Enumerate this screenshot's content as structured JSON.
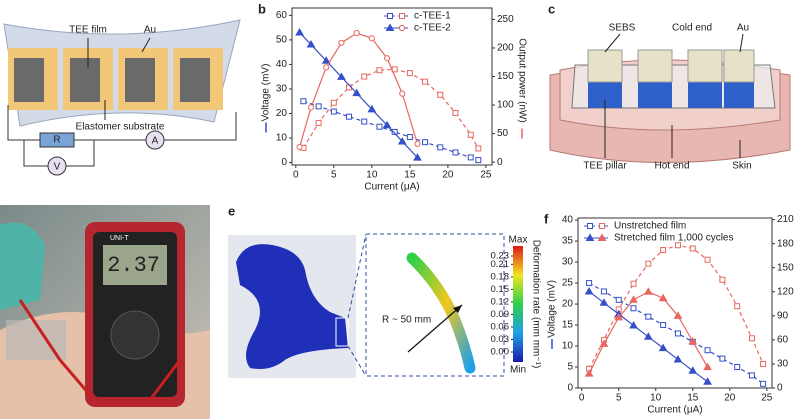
{
  "panel_a": {
    "tee_film": "TEE film",
    "au": "Au",
    "substrate": "Elastomer substrate",
    "resistor": "R",
    "voltmeter": "V",
    "ammeter": "A"
  },
  "panel_c": {
    "letter": "c",
    "sebs": "SEBS",
    "cold_end": "Cold end",
    "au": "Au",
    "tee_pillar": "TEE pillar",
    "hot_end": "Hot end",
    "skin": "Skin"
  },
  "panel_d": {
    "display": "2.37",
    "brand": "UNI-T"
  },
  "panel_e": {
    "letter": "e",
    "max": "Max",
    "min": "Min",
    "colorbar_label": "Deformation rate (mm mm⁻¹)",
    "radius": "R ~ 50 mm",
    "ticks": [
      0.23,
      0.21,
      0.18,
      0.15,
      0.12,
      0.09,
      0.06,
      0.03,
      {
        "value": 0,
        "label": "0.00"
      }
    ]
  },
  "chart_data": [
    {
      "type": "line",
      "panel": "b",
      "x_label": "Current (μA)",
      "y_label": "Voltage (mV)",
      "y2_label": "Output power (nW)",
      "xlim": [
        -0.5,
        25.8
      ],
      "ylim": [
        -1,
        63
      ],
      "y2lim": [
        -5,
        270
      ],
      "xticks": [
        0,
        5,
        10,
        15,
        20,
        25
      ],
      "yticks": [
        0,
        10,
        20,
        30,
        40,
        50,
        60
      ],
      "y2ticks": [
        0,
        50,
        100,
        150,
        200,
        250
      ],
      "legend": "top-right",
      "series": [
        {
          "name": "c-TEE-1",
          "color": "#3550c8",
          "y2_color": "#e8675f",
          "dashed": true,
          "marker": "square",
          "y2_marker": "square",
          "x": [
            1,
            3,
            5,
            7,
            9,
            11,
            13,
            15,
            17,
            19,
            21,
            23,
            24
          ],
          "values": [
            25,
            22.9,
            20.8,
            18.7,
            16.7,
            14.6,
            12.5,
            10.4,
            8.3,
            6.2,
            4.1,
            2.1,
            1
          ],
          "y2_values": [
            25,
            68.7,
            104,
            131,
            150,
            161,
            162.5,
            156,
            141,
            118,
            86,
            48,
            24
          ]
        },
        {
          "name": "c-TEE-2",
          "color": "#3550c8",
          "y2_color": "#e8675f",
          "dashed": false,
          "marker": "triangle",
          "y2_marker": "circle",
          "x": [
            0.5,
            2,
            4,
            6,
            8,
            10,
            12,
            14,
            16
          ],
          "values": [
            53,
            48.1,
            41.5,
            34.9,
            28.3,
            21.7,
            15.2,
            8.6,
            2
          ],
          "y2_values": [
            26.5,
            96,
            166,
            209,
            226,
            217,
            182,
            120,
            32
          ]
        }
      ]
    },
    {
      "type": "line",
      "panel": "f",
      "x_label": "Current (μA)",
      "y_label": "Voltage (mV)",
      "xlim": [
        -0.5,
        25.7
      ],
      "ylim": [
        0,
        40.5
      ],
      "y2lim": [
        0,
        212
      ],
      "xticks": [
        0,
        5,
        10,
        15,
        20,
        25
      ],
      "yticks": [
        0,
        5,
        10,
        15,
        20,
        25,
        30,
        35,
        40
      ],
      "y2ticks": [
        0,
        30,
        60,
        90,
        120,
        150,
        180,
        210
      ],
      "legend": "top-left",
      "series": [
        {
          "name": "Unstretched film",
          "color": "#3550c8",
          "y2_color": "#e8675f",
          "dashed": true,
          "marker": "square",
          "y2_marker": "square",
          "x": [
            1,
            3,
            5,
            7,
            9,
            11,
            13,
            15,
            17,
            19,
            21,
            23,
            24.5
          ],
          "values": [
            25,
            23,
            21,
            19,
            17,
            15,
            13,
            11,
            9,
            7,
            5,
            3,
            1
          ],
          "y2_values": [
            24,
            60,
            98,
            130,
            155,
            172,
            178,
            174,
            160,
            135,
            102,
            62,
            30
          ]
        },
        {
          "name": "Stretched film 1,000 cycles",
          "color": "#3550c8",
          "y2_color": "#e8675f",
          "dashed": false,
          "marker": "triangle",
          "y2_marker": "triangle",
          "x": [
            1,
            3,
            5,
            7,
            9,
            11,
            13,
            15,
            17
          ],
          "values": [
            23,
            20.3,
            17.6,
            14.9,
            12.2,
            9.5,
            6.8,
            4.1,
            1.5
          ],
          "y2_values": [
            18,
            55,
            88,
            110,
            120,
            112,
            90,
            58,
            26
          ]
        }
      ]
    }
  ]
}
